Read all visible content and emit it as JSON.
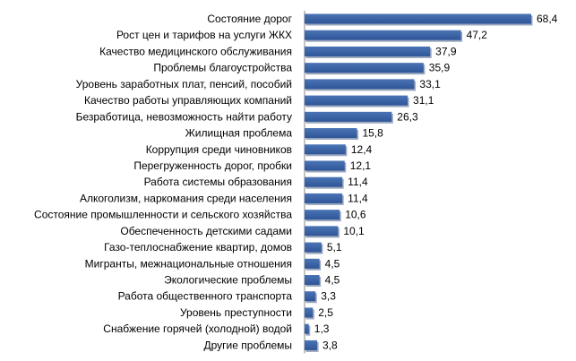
{
  "chart_data": {
    "type": "bar",
    "orientation": "horizontal",
    "categories": [
      "Состояние дорог",
      "Рост цен и тарифов на услуги ЖКХ",
      "Качество медицинского обслуживания",
      "Проблемы благоустройства",
      "Уровень заработных плат, пенсий, пособий",
      "Качество работы управляющих компаний",
      "Безработица, невозможность найти работу",
      "Жилищная проблема",
      "Коррупция среди чиновников",
      "Перегруженность дорог, пробки",
      "Работа системы образования",
      "Алкоголизм, наркомания среди населения",
      "Состояние промышленности и сельского хозяйства",
      "Обеспеченность детскими садами",
      "Газо-теплоснабжение квартир, домов",
      "Мигранты, межнациональные отношения",
      "Экологические проблемы",
      "Работа общественного транспорта",
      "Уровень преступности",
      "Снабжение горячей (холодной) водой",
      "Другие проблемы"
    ],
    "values": [
      68.4,
      47.2,
      37.9,
      35.9,
      33.1,
      31.1,
      26.3,
      15.8,
      12.4,
      12.1,
      11.4,
      11.4,
      10.6,
      10.1,
      5.1,
      4.5,
      4.5,
      3.3,
      2.5,
      1.3,
      3.8
    ],
    "value_labels": [
      "68,4",
      "47,2",
      "37,9",
      "35,9",
      "33,1",
      "31,1",
      "26,3",
      "15,8",
      "12,4",
      "12,1",
      "11,4",
      "11,4",
      "10,6",
      "10,1",
      "5,1",
      "4,5",
      "4,5",
      "3,3",
      "2,5",
      "1,3",
      "3,8"
    ],
    "title": "",
    "xlabel": "",
    "ylabel": "",
    "xlim": [
      0,
      68.4
    ],
    "grid": false,
    "legend": "none",
    "bar_color": "#4a74b5",
    "bar_color_dark": "#2f5597"
  }
}
